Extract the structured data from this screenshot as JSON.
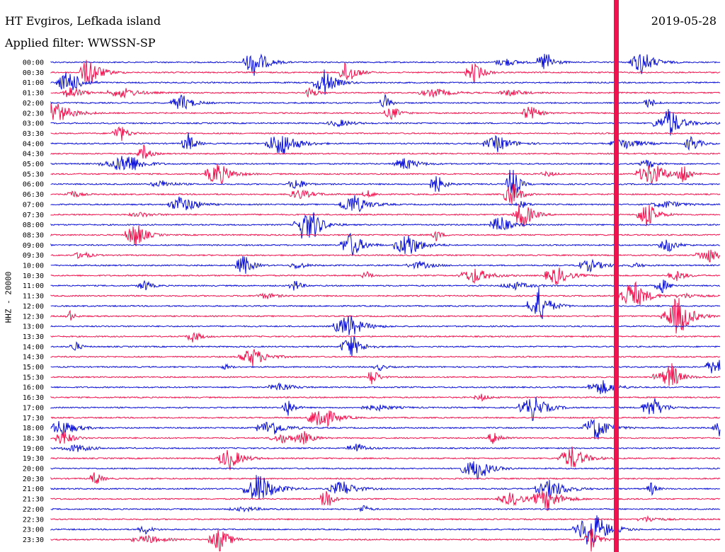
{
  "header": {
    "station": "HT Evgiros, Lefkada island",
    "date": "2019-05-28",
    "filter": "Applied filter: WWSSN-SP"
  },
  "channel_label": "HHZ - 20000",
  "colors": {
    "red": "#f0124e",
    "blue": "#0a0fd6",
    "marker": "#f0124e"
  },
  "time_labels": [
    "00:00",
    "00:30",
    "01:00",
    "01:30",
    "02:00",
    "02:30",
    "03:00",
    "03:30",
    "04:00",
    "04:30",
    "05:00",
    "05:30",
    "06:00",
    "06:30",
    "07:00",
    "07:30",
    "08:00",
    "08:30",
    "09:00",
    "09:30",
    "10:00",
    "10:30",
    "11:00",
    "11:30",
    "12:00",
    "12:30",
    "13:00",
    "13:30",
    "14:00",
    "14:30",
    "15:00",
    "15:30",
    "16:00",
    "16:30",
    "17:00",
    "17:30",
    "18:00",
    "18:30",
    "19:00",
    "19:30",
    "20:00",
    "20:30",
    "21:00",
    "21:30",
    "22:00",
    "22:30",
    "23:00",
    "23:30"
  ]
}
